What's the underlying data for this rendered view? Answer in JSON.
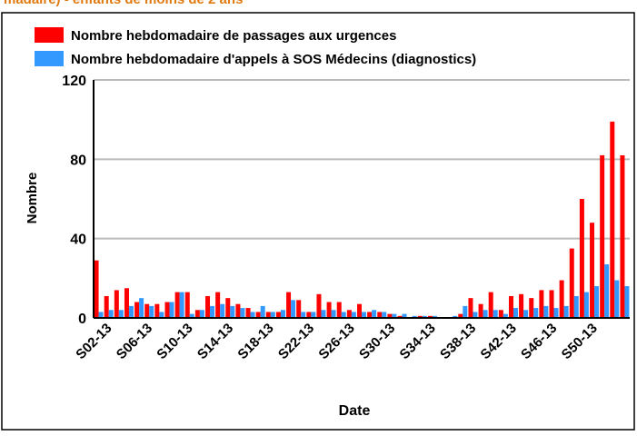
{
  "chart_data": {
    "type": "bar",
    "title": "madaire) - enfants de moins de 2 ans",
    "x_label": "Date",
    "y_label": "Nombre",
    "categories": [
      null,
      "S02-13",
      null,
      null,
      null,
      "S06-13",
      null,
      null,
      null,
      "S10-13",
      null,
      null,
      null,
      "S14-13",
      null,
      null,
      null,
      "S18-13",
      null,
      null,
      null,
      "S22-13",
      null,
      null,
      null,
      "S26-13",
      null,
      null,
      null,
      "S30-13",
      null,
      null,
      null,
      "S34-13",
      null,
      null,
      null,
      "S38-13",
      null,
      null,
      null,
      "S42-13",
      null,
      null,
      null,
      "S46-13",
      null,
      null,
      null,
      "S50-13",
      null,
      null,
      null
    ],
    "series": [
      {
        "name": "Nombre hebdomadaire de passages aux urgences",
        "color": "#ff0000",
        "values": [
          29,
          11,
          14,
          15,
          8,
          7,
          7,
          8,
          13,
          13,
          4,
          11,
          13,
          10,
          7,
          5,
          3,
          3,
          3,
          13,
          9,
          3,
          12,
          8,
          8,
          4,
          7,
          3,
          3,
          2,
          1,
          0,
          1,
          1,
          0,
          0,
          2,
          10,
          7,
          13,
          4,
          11,
          12,
          10,
          14,
          14,
          19,
          35,
          60,
          48,
          82,
          99,
          82
        ]
      },
      {
        "name": "Nombre hebdomadaire d'appels à SOS Médecins (diagnostics)",
        "color": "#3399ff",
        "values": [
          3,
          4,
          4,
          6,
          10,
          6,
          3,
          8,
          13,
          2,
          4,
          6,
          7,
          6,
          5,
          3,
          6,
          3,
          4,
          9,
          3,
          3,
          4,
          4,
          3,
          3,
          3,
          4,
          3,
          2,
          2,
          1,
          1,
          1,
          0,
          1,
          6,
          3,
          4,
          4,
          2,
          5,
          4,
          5,
          6,
          5,
          6,
          11,
          13,
          16,
          27,
          19,
          16
        ]
      }
    ],
    "ylim": [
      0,
      120
    ],
    "yticks": [
      0,
      40,
      80,
      120
    ],
    "grid": true
  }
}
